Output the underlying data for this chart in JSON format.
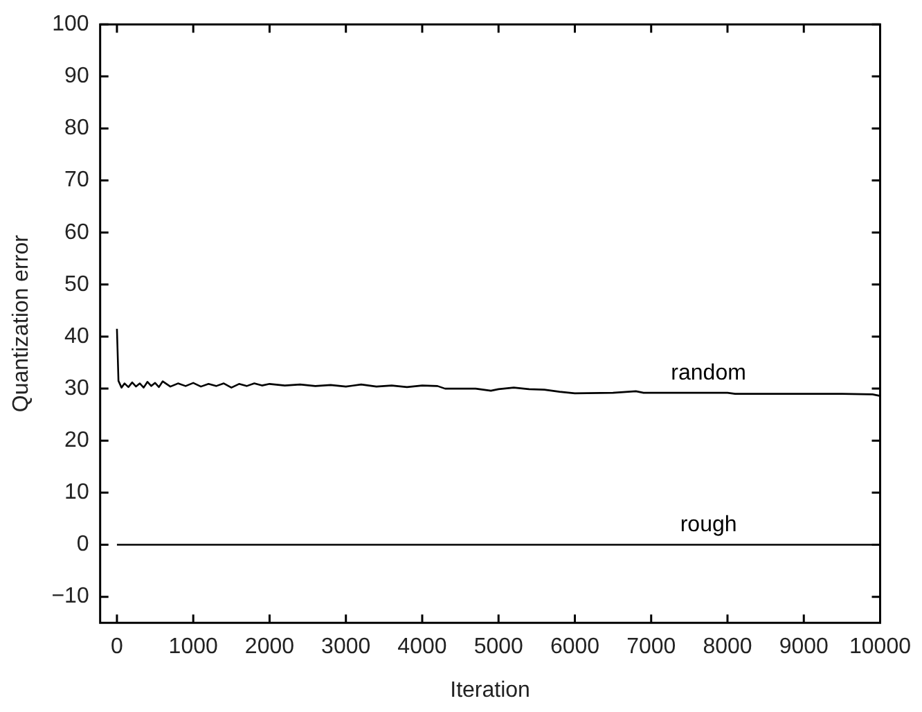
{
  "chart_data": {
    "type": "line",
    "xlabel": "Iteration",
    "ylabel": "Quantization error",
    "xlim": [
      -220,
      10000
    ],
    "xticks": [
      0,
      1000,
      2000,
      3000,
      4000,
      5000,
      6000,
      7000,
      8000,
      9000,
      10000
    ],
    "ylim": [
      -15,
      100
    ],
    "yticks": [
      -10,
      0,
      10,
      20,
      30,
      40,
      50,
      60,
      70,
      80,
      90,
      100
    ],
    "grid": false,
    "legend": false,
    "marker": "none",
    "line_style": "solid",
    "series": [
      {
        "name": "random",
        "color": "#000000",
        "x": [
          0,
          20,
          60,
          100,
          150,
          200,
          250,
          300,
          350,
          400,
          450,
          500,
          550,
          600,
          700,
          800,
          900,
          1000,
          1100,
          1200,
          1300,
          1400,
          1500,
          1600,
          1700,
          1800,
          1900,
          2000,
          2200,
          2400,
          2600,
          2800,
          3000,
          3200,
          3400,
          3600,
          3800,
          4000,
          4200,
          4300,
          4700,
          4900,
          5000,
          5200,
          5400,
          5600,
          5800,
          6000,
          6500,
          6800,
          6900,
          7500,
          8000,
          8100,
          9500,
          9900,
          10000
        ],
        "values": [
          41.5,
          31.5,
          30.2,
          31,
          30.3,
          31.2,
          30.4,
          31,
          30.2,
          31.3,
          30.5,
          31.1,
          30.3,
          31.4,
          30.4,
          31,
          30.5,
          31.1,
          30.4,
          30.9,
          30.5,
          31,
          30.2,
          30.9,
          30.5,
          31,
          30.6,
          30.9,
          30.6,
          30.8,
          30.5,
          30.7,
          30.4,
          30.8,
          30.4,
          30.6,
          30.3,
          30.6,
          30.5,
          30,
          30,
          29.6,
          29.9,
          30.2,
          29.9,
          29.8,
          29.4,
          29.1,
          29.2,
          29.5,
          29.2,
          29.2,
          29.2,
          29,
          29,
          28.9,
          28.6
        ]
      },
      {
        "name": "rough",
        "color": "#000000",
        "x": [
          0,
          10000
        ],
        "values": [
          0,
          0
        ]
      }
    ]
  }
}
